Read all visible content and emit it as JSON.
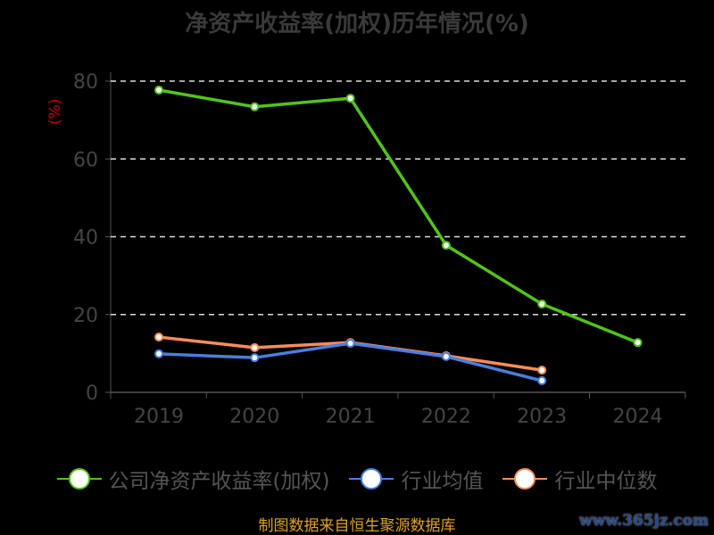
{
  "chart_data": {
    "type": "line",
    "title": "净资产收益率(加权)历年情况(%)",
    "ylabel": "(%)",
    "xlabel": "",
    "categories": [
      "2019",
      "2020",
      "2021",
      "2022",
      "2023",
      "2024"
    ],
    "ylim": [
      0,
      80
    ],
    "yticks": [
      0,
      20,
      40,
      60,
      80
    ],
    "grid": true,
    "legend_position": "bottom",
    "series": [
      {
        "name": "公司净资产收益率(加权)",
        "color": "#52c41a",
        "values": [
          77.7,
          73.4,
          75.6,
          37.8,
          22.7,
          12.8
        ]
      },
      {
        "name": "行业均值",
        "color": "#4a7fe0",
        "values": [
          9.9,
          8.9,
          12.6,
          9.2,
          3.0,
          null
        ]
      },
      {
        "name": "行业中位数",
        "color": "#ff8c5a",
        "values": [
          14.2,
          11.5,
          12.8,
          9.4,
          5.7,
          null
        ]
      }
    ]
  },
  "source": "制图数据来自恒生聚源数据库",
  "watermark": "www.365jz.com"
}
